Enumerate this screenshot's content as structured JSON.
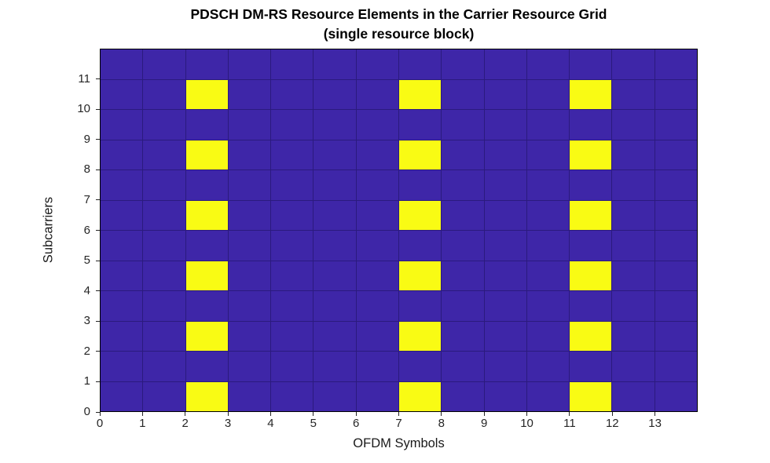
{
  "chart_data": {
    "type": "heatmap",
    "title": "PDSCH DM-RS Resource Elements in the Carrier Resource Grid",
    "subtitle": "(single resource block)",
    "xlabel": "OFDM Symbols",
    "ylabel": "Subcarriers",
    "x_ticks": [
      0,
      1,
      2,
      3,
      4,
      5,
      6,
      7,
      8,
      9,
      10,
      11,
      12,
      13
    ],
    "y_ticks": [
      0,
      1,
      2,
      3,
      4,
      5,
      6,
      7,
      8,
      9,
      10,
      11
    ],
    "x_range": [
      0,
      14
    ],
    "y_range": [
      0,
      12
    ],
    "grid": true,
    "legend": false,
    "dmrs_symbol_columns": [
      2,
      7,
      11
    ],
    "dmrs_subcarrier_rows": [
      0,
      2,
      4,
      6,
      8,
      10
    ],
    "matrix_row_order": "subcarrier 0 (bottom) to subcarrier 11 (top), 14 OFDM symbols per row, 1 = DM-RS resource element",
    "matrix": [
      [
        0,
        0,
        1,
        0,
        0,
        0,
        0,
        1,
        0,
        0,
        0,
        1,
        0,
        0
      ],
      [
        0,
        0,
        0,
        0,
        0,
        0,
        0,
        0,
        0,
        0,
        0,
        0,
        0,
        0
      ],
      [
        0,
        0,
        1,
        0,
        0,
        0,
        0,
        1,
        0,
        0,
        0,
        1,
        0,
        0
      ],
      [
        0,
        0,
        0,
        0,
        0,
        0,
        0,
        0,
        0,
        0,
        0,
        0,
        0,
        0
      ],
      [
        0,
        0,
        1,
        0,
        0,
        0,
        0,
        1,
        0,
        0,
        0,
        1,
        0,
        0
      ],
      [
        0,
        0,
        0,
        0,
        0,
        0,
        0,
        0,
        0,
        0,
        0,
        0,
        0,
        0
      ],
      [
        0,
        0,
        1,
        0,
        0,
        0,
        0,
        1,
        0,
        0,
        0,
        1,
        0,
        0
      ],
      [
        0,
        0,
        0,
        0,
        0,
        0,
        0,
        0,
        0,
        0,
        0,
        0,
        0,
        0
      ],
      [
        0,
        0,
        1,
        0,
        0,
        0,
        0,
        1,
        0,
        0,
        0,
        1,
        0,
        0
      ],
      [
        0,
        0,
        0,
        0,
        0,
        0,
        0,
        0,
        0,
        0,
        0,
        0,
        0,
        0
      ],
      [
        0,
        0,
        1,
        0,
        0,
        0,
        0,
        1,
        0,
        0,
        0,
        1,
        0,
        0
      ],
      [
        0,
        0,
        0,
        0,
        0,
        0,
        0,
        0,
        0,
        0,
        0,
        0,
        0,
        0
      ]
    ],
    "colors": {
      "value0": "#3E26A8",
      "value1": "#F9FB14",
      "gridline": "#2B1A7E",
      "axis_box": "#000000",
      "tick_label": "#262626",
      "title": "#000000"
    }
  }
}
